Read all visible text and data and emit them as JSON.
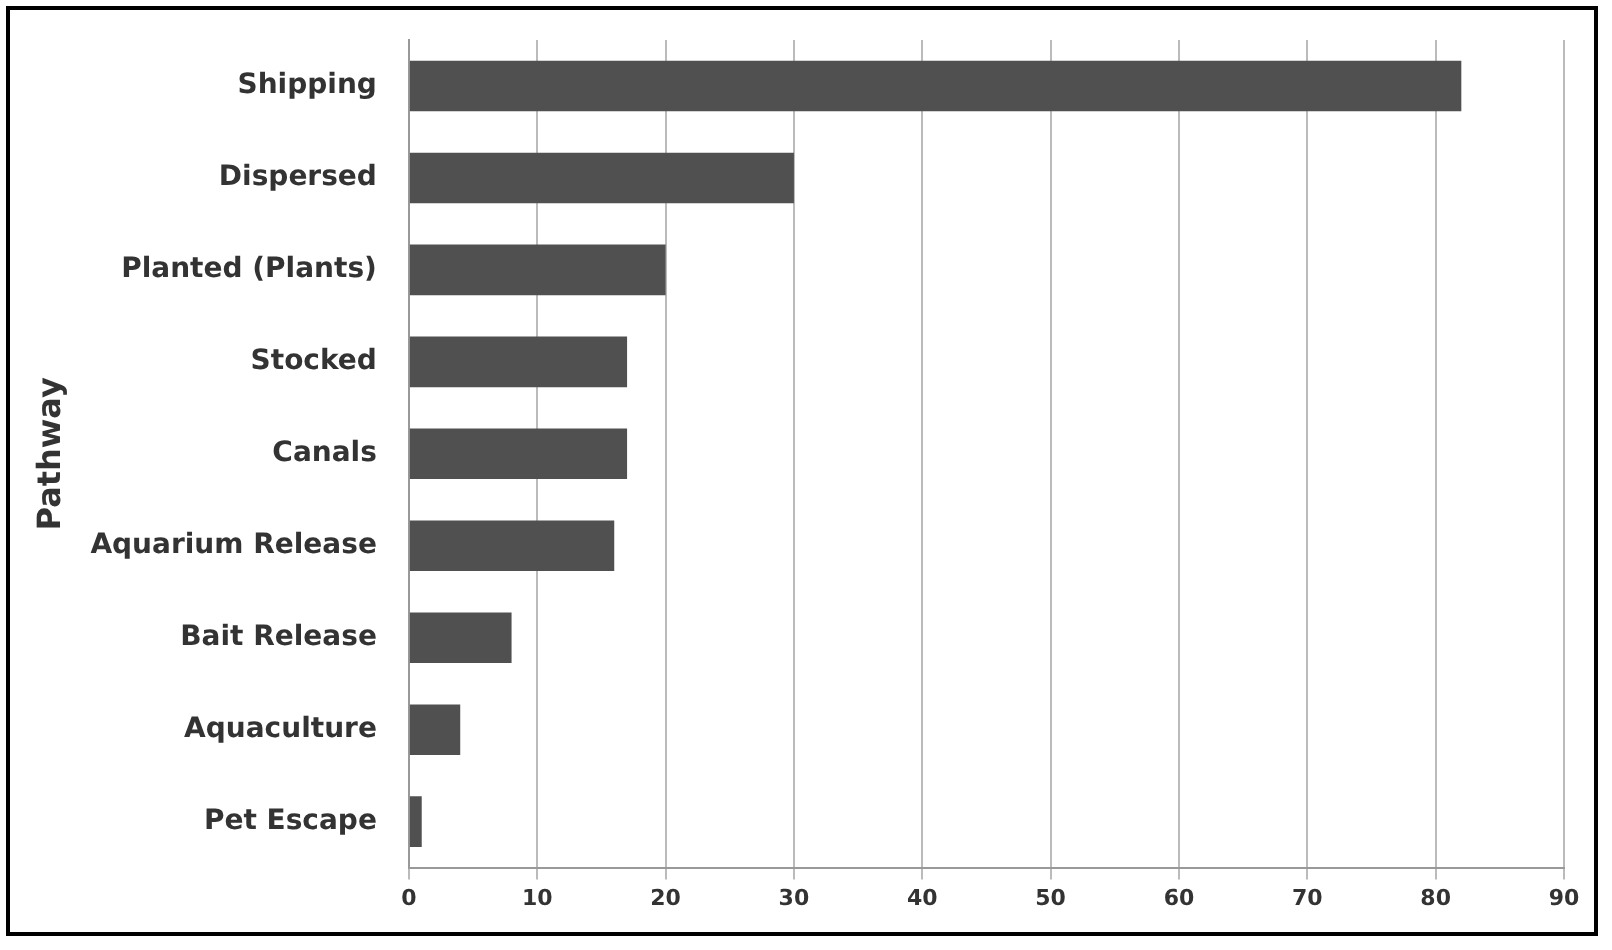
{
  "chart_data": {
    "type": "bar",
    "orientation": "horizontal",
    "ylabel": "Pathway",
    "categories": [
      "Shipping",
      "Dispersed",
      "Planted (Plants)",
      "Stocked",
      "Canals",
      "Aquarium Release",
      "Bait Release",
      "Aquaculture",
      "Pet Escape"
    ],
    "values": [
      82,
      30,
      20,
      17,
      17,
      16,
      8,
      4,
      1
    ],
    "color": "#505050",
    "xlim": [
      0,
      90
    ],
    "xticks": [
      0,
      10,
      20,
      30,
      40,
      50,
      60,
      70,
      80,
      90
    ],
    "grid": "x",
    "legend": false
  }
}
